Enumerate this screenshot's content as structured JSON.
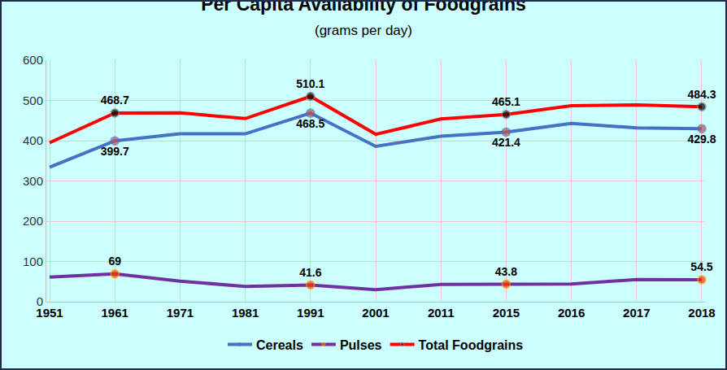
{
  "chart_data": {
    "type": "line",
    "title": "Per Capita Availability of Foodgrains",
    "subtitle": "(grams per day)",
    "categories": [
      "1951",
      "1961",
      "1971",
      "1981",
      "1991",
      "2001",
      "2011",
      "2015",
      "2016",
      "2017",
      "2018"
    ],
    "series": [
      {
        "name": "Cereals",
        "color": "#4472c4",
        "values": [
          334,
          399.7,
          417,
          417,
          468.5,
          386,
          411,
          421.4,
          443,
          432,
          429.8
        ],
        "value_labels": [
          null,
          "399.7",
          null,
          null,
          "468.5",
          null,
          null,
          "421.4",
          null,
          null,
          "429.8"
        ]
      },
      {
        "name": "Pulses",
        "color": "#7030a0",
        "values": [
          61,
          69,
          51,
          38,
          41.6,
          30,
          43,
          43.8,
          44,
          55,
          54.5
        ],
        "value_labels": [
          null,
          "69",
          null,
          null,
          "41.6",
          null,
          null,
          "43.8",
          null,
          null,
          "54.5"
        ]
      },
      {
        "name": "Total Foodgrains",
        "color": "#ff0000",
        "values": [
          395,
          468.7,
          469,
          455,
          510.1,
          416,
          454,
          465.1,
          487,
          489,
          484.3
        ],
        "value_labels": [
          null,
          "468.7",
          null,
          null,
          "510.1",
          null,
          null,
          "465.1",
          null,
          null,
          "484.3"
        ]
      }
    ],
    "ylim": [
      0,
      600
    ],
    "yticks": [
      0,
      100,
      200,
      300,
      400,
      500,
      600
    ],
    "grid": true,
    "legend": "bottom",
    "data_labels": true,
    "marker": "circle"
  }
}
